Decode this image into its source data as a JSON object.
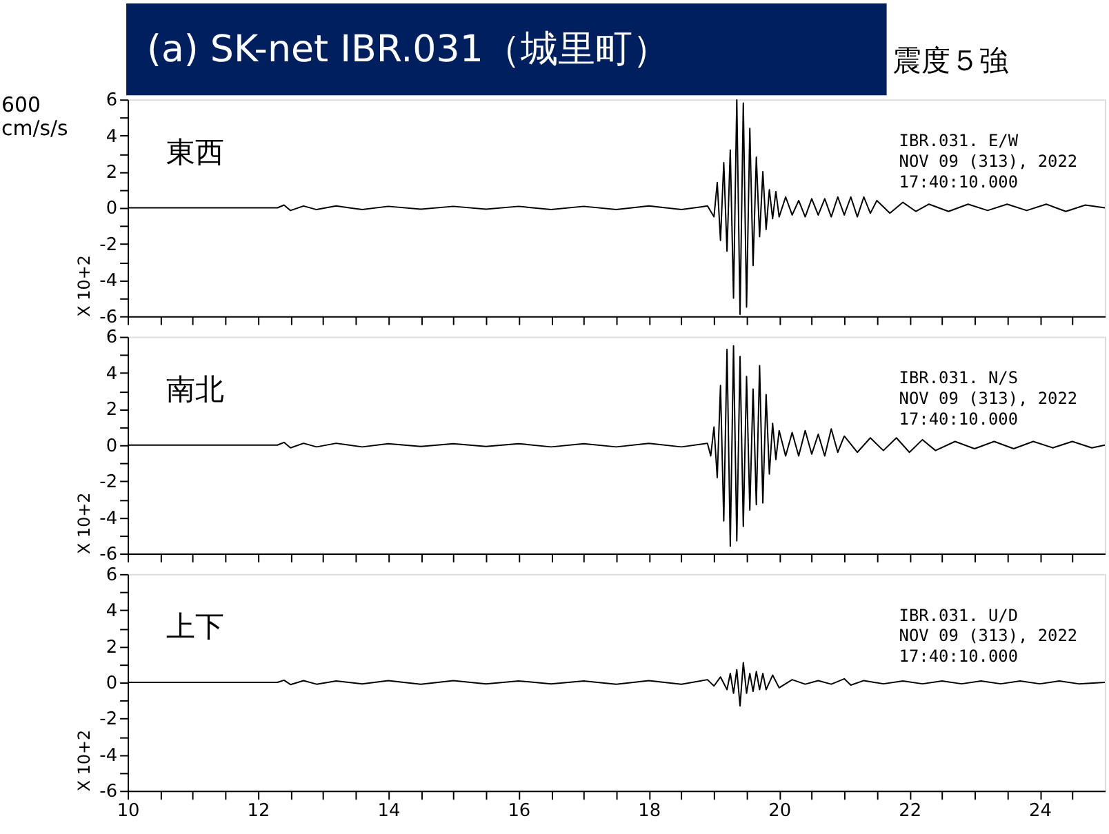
{
  "chart_data": [
    {
      "type": "line",
      "title": "(a) SK-net IBR.031（城里町）",
      "ylabel": "X 10+2",
      "annotations": [
        "600 cm/s/s",
        "震度５強",
        "東西",
        "IBR.031.  E/W",
        "NOV 09 (313), 2022",
        "17:40:10.000"
      ],
      "grid": false,
      "tick_labels": "y",
      "xlim": [
        10,
        25
      ],
      "xticks": [
        10,
        {
          "value": 10.5,
          "label": null
        },
        {
          "value": 11,
          "label": null
        },
        {
          "value": 11.5,
          "label": null
        },
        12,
        {
          "value": 12.5,
          "label": null
        },
        {
          "value": 13,
          "label": null
        },
        {
          "value": 13.5,
          "label": null
        },
        14,
        {
          "value": 14.5,
          "label": null
        },
        {
          "value": 15,
          "label": null
        },
        {
          "value": 15.5,
          "label": null
        },
        16,
        {
          "value": 16.5,
          "label": null
        },
        {
          "value": 17,
          "label": null
        },
        {
          "value": 17.5,
          "label": null
        },
        18,
        {
          "value": 18.5,
          "label": null
        },
        {
          "value": 19,
          "label": null
        },
        {
          "value": 19.5,
          "label": null
        },
        20,
        {
          "value": 20.5,
          "label": null
        },
        {
          "value": 21,
          "label": null
        },
        {
          "value": 21.5,
          "label": null
        },
        22,
        {
          "value": 22.5,
          "label": null
        },
        {
          "value": 23,
          "label": null
        },
        {
          "value": 23.5,
          "label": null
        },
        24,
        {
          "value": 24.5,
          "label": null
        }
      ],
      "ylim": [
        -6,
        6
      ],
      "yticks": [
        -6,
        {
          "value": -5,
          "label": null
        },
        -4,
        {
          "value": -3,
          "label": null
        },
        -2,
        {
          "value": -1,
          "label": null
        },
        0,
        {
          "value": 1,
          "label": null
        },
        2,
        {
          "value": 3,
          "label": null
        },
        4,
        {
          "value": 5,
          "label": null
        },
        6
      ],
      "series": [
        {
          "color": "#000000",
          "x": [
            10.0,
            12.3,
            12.4,
            12.5,
            12.7,
            12.9,
            13.2,
            13.6,
            14.0,
            14.5,
            15.0,
            15.5,
            16.0,
            16.5,
            17.0,
            17.5,
            18.0,
            18.5,
            18.9,
            19.0,
            19.05,
            19.1,
            19.15,
            19.2,
            19.25,
            19.3,
            19.35,
            19.4,
            19.45,
            19.5,
            19.55,
            19.6,
            19.65,
            19.7,
            19.75,
            19.8,
            19.85,
            19.9,
            19.95,
            20.0,
            20.1,
            20.2,
            20.3,
            20.4,
            20.5,
            20.6,
            20.7,
            20.8,
            20.9,
            21.0,
            21.1,
            21.2,
            21.3,
            21.4,
            21.5,
            21.7,
            21.9,
            22.1,
            22.3,
            22.6,
            22.9,
            23.2,
            23.5,
            23.8,
            24.1,
            24.4,
            24.7,
            25.0
          ],
          "values": [
            0,
            0,
            0.15,
            -0.15,
            0.1,
            -0.1,
            0.1,
            -0.1,
            0.08,
            -0.08,
            0.08,
            -0.08,
            0.08,
            -0.1,
            0.08,
            -0.1,
            0.1,
            -0.1,
            0.1,
            -0.5,
            1.4,
            -1.8,
            2.5,
            -2.4,
            3.2,
            -5.0,
            6.0,
            -5.9,
            5.8,
            -5.5,
            4.4,
            -3.2,
            2.8,
            -1.6,
            2.0,
            -1.2,
            1.0,
            -0.6,
            0.9,
            -0.5,
            0.6,
            -0.4,
            0.4,
            -0.5,
            0.5,
            -0.4,
            0.5,
            -0.5,
            0.6,
            -0.4,
            0.6,
            -0.5,
            0.6,
            -0.3,
            0.4,
            -0.3,
            0.3,
            -0.2,
            0.2,
            -0.2,
            0.2,
            -0.15,
            0.2,
            -0.15,
            0.2,
            -0.2,
            0.15,
            0
          ]
        }
      ]
    },
    {
      "type": "line",
      "ylabel": "X 10+2",
      "annotations": [
        "南北",
        "IBR.031.  N/S",
        "NOV 09 (313), 2022",
        "17:40:10.000"
      ],
      "grid": false,
      "tick_labels": "y",
      "xlim": [
        10,
        25
      ],
      "xticks": [
        10,
        {
          "value": 10.5,
          "label": null
        },
        {
          "value": 11,
          "label": null
        },
        {
          "value": 11.5,
          "label": null
        },
        12,
        {
          "value": 12.5,
          "label": null
        },
        {
          "value": 13,
          "label": null
        },
        {
          "value": 13.5,
          "label": null
        },
        14,
        {
          "value": 14.5,
          "label": null
        },
        {
          "value": 15,
          "label": null
        },
        {
          "value": 15.5,
          "label": null
        },
        16,
        {
          "value": 16.5,
          "label": null
        },
        {
          "value": 17,
          "label": null
        },
        {
          "value": 17.5,
          "label": null
        },
        18,
        {
          "value": 18.5,
          "label": null
        },
        {
          "value": 19,
          "label": null
        },
        {
          "value": 19.5,
          "label": null
        },
        20,
        {
          "value": 20.5,
          "label": null
        },
        {
          "value": 21,
          "label": null
        },
        {
          "value": 21.5,
          "label": null
        },
        22,
        {
          "value": 22.5,
          "label": null
        },
        {
          "value": 23,
          "label": null
        },
        {
          "value": 23.5,
          "label": null
        },
        24,
        {
          "value": 24.5,
          "label": null
        }
      ],
      "ylim": [
        -6,
        6
      ],
      "yticks": [
        -6,
        {
          "value": -5,
          "label": null
        },
        -4,
        {
          "value": -3,
          "label": null
        },
        -2,
        {
          "value": -1,
          "label": null
        },
        0,
        {
          "value": 1,
          "label": null
        },
        2,
        {
          "value": 3,
          "label": null
        },
        4,
        {
          "value": 5,
          "label": null
        },
        6
      ],
      "series": [
        {
          "color": "#000000",
          "x": [
            10.0,
            12.3,
            12.4,
            12.5,
            12.7,
            12.9,
            13.2,
            13.6,
            14.0,
            14.5,
            15.0,
            15.5,
            16.0,
            16.5,
            17.0,
            17.5,
            18.0,
            18.5,
            18.9,
            18.95,
            19.0,
            19.05,
            19.1,
            19.15,
            19.2,
            19.25,
            19.3,
            19.35,
            19.4,
            19.45,
            19.5,
            19.55,
            19.6,
            19.65,
            19.7,
            19.75,
            19.8,
            19.85,
            19.9,
            19.95,
            20.0,
            20.1,
            20.2,
            20.3,
            20.4,
            20.5,
            20.6,
            20.7,
            20.8,
            20.9,
            21.0,
            21.2,
            21.4,
            21.6,
            21.8,
            22.0,
            22.2,
            22.4,
            22.7,
            23.0,
            23.3,
            23.6,
            23.9,
            24.2,
            24.5,
            24.8,
            25.0
          ],
          "values": [
            0,
            0,
            0.15,
            -0.15,
            0.1,
            -0.1,
            0.1,
            -0.1,
            0.08,
            -0.08,
            0.08,
            -0.08,
            0.08,
            -0.1,
            0.08,
            -0.1,
            0.1,
            -0.1,
            0.1,
            -0.6,
            1.0,
            -1.8,
            3.3,
            -4.2,
            5.3,
            -5.6,
            5.5,
            -5.3,
            4.9,
            -4.5,
            3.8,
            -3.6,
            3.1,
            -3.3,
            4.4,
            -3.2,
            2.8,
            -1.6,
            1.2,
            -0.8,
            0.8,
            -0.6,
            0.7,
            -0.6,
            0.8,
            -0.5,
            0.6,
            -0.6,
            0.9,
            -0.4,
            0.5,
            -0.4,
            0.4,
            -0.3,
            0.4,
            -0.4,
            0.3,
            -0.3,
            0.2,
            -0.2,
            0.2,
            -0.2,
            0.2,
            -0.15,
            0.2,
            -0.15,
            0
          ]
        }
      ]
    },
    {
      "type": "line",
      "ylabel": "X 10+2",
      "annotations": [
        "上下",
        "IBR.031.  U/D",
        "NOV 09 (313), 2022",
        "17:40:10.000"
      ],
      "grid": false,
      "xlim": [
        10,
        25
      ],
      "xticks": [
        10,
        {
          "value": 10.5,
          "label": null
        },
        {
          "value": 11,
          "label": null
        },
        {
          "value": 11.5,
          "label": null
        },
        12,
        {
          "value": 12.5,
          "label": null
        },
        {
          "value": 13,
          "label": null
        },
        {
          "value": 13.5,
          "label": null
        },
        14,
        {
          "value": 14.5,
          "label": null
        },
        {
          "value": 15,
          "label": null
        },
        {
          "value": 15.5,
          "label": null
        },
        16,
        {
          "value": 16.5,
          "label": null
        },
        {
          "value": 17,
          "label": null
        },
        {
          "value": 17.5,
          "label": null
        },
        18,
        {
          "value": 18.5,
          "label": null
        },
        {
          "value": 19,
          "label": null
        },
        {
          "value": 19.5,
          "label": null
        },
        20,
        {
          "value": 20.5,
          "label": null
        },
        {
          "value": 21,
          "label": null
        },
        {
          "value": 21.5,
          "label": null
        },
        22,
        {
          "value": 22.5,
          "label": null
        },
        {
          "value": 23,
          "label": null
        },
        {
          "value": 23.5,
          "label": null
        },
        24,
        {
          "value": 24.5,
          "label": null
        }
      ],
      "ylim": [
        -6,
        6
      ],
      "yticks": [
        -6,
        {
          "value": -5,
          "label": null
        },
        -4,
        {
          "value": -3,
          "label": null
        },
        -2,
        {
          "value": -1,
          "label": null
        },
        0,
        {
          "value": 1,
          "label": null
        },
        2,
        {
          "value": 3,
          "label": null
        },
        4,
        {
          "value": 5,
          "label": null
        },
        6
      ],
      "series": [
        {
          "color": "#000000",
          "x": [
            10.0,
            12.3,
            12.4,
            12.5,
            12.7,
            12.9,
            13.2,
            13.6,
            14.0,
            14.5,
            15.0,
            15.5,
            16.0,
            16.5,
            17.0,
            17.5,
            18.0,
            18.5,
            18.9,
            19.0,
            19.1,
            19.2,
            19.25,
            19.3,
            19.35,
            19.4,
            19.45,
            19.5,
            19.55,
            19.6,
            19.65,
            19.7,
            19.75,
            19.8,
            19.9,
            20.0,
            20.2,
            20.4,
            20.6,
            20.8,
            21.0,
            21.1,
            21.3,
            21.6,
            21.9,
            22.2,
            22.5,
            22.8,
            23.1,
            23.4,
            23.7,
            24.0,
            24.3,
            24.6,
            25.0
          ],
          "values": [
            0,
            0,
            0.12,
            -0.12,
            0.1,
            -0.1,
            0.08,
            -0.08,
            0.1,
            -0.1,
            0.1,
            -0.08,
            0.08,
            -0.08,
            0.08,
            -0.1,
            0.1,
            -0.1,
            0.15,
            -0.2,
            0.3,
            -0.4,
            0.5,
            -0.6,
            0.7,
            -1.3,
            1.1,
            -0.6,
            0.5,
            -0.5,
            0.6,
            -0.4,
            0.5,
            -0.4,
            0.4,
            -0.3,
            0.15,
            -0.1,
            0.1,
            -0.1,
            0.2,
            -0.15,
            0.1,
            -0.08,
            0.08,
            -0.08,
            0.08,
            -0.08,
            0.08,
            -0.08,
            0.08,
            -0.08,
            0.08,
            -0.08,
            0
          ]
        }
      ]
    }
  ]
}
